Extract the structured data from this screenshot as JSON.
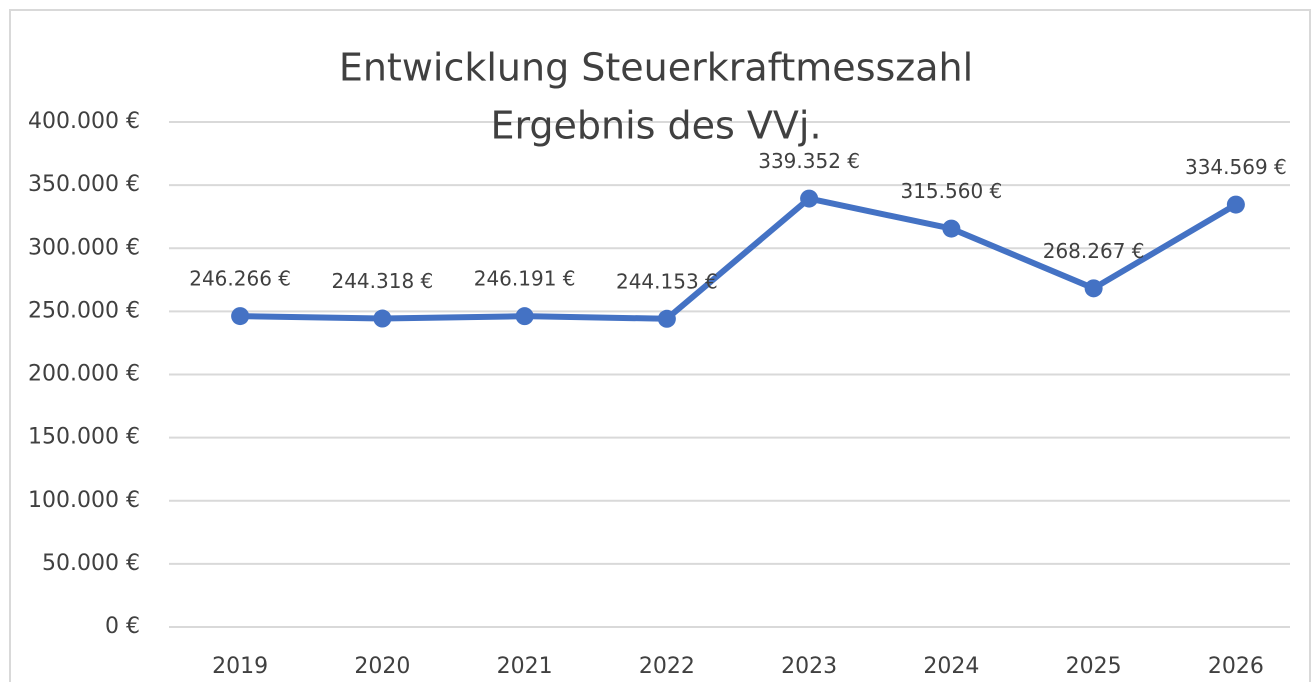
{
  "chart_data": {
    "type": "line",
    "title": "Entwicklung Steuerkraftmesszahl",
    "subtitle": "Ergebnis des VVj.",
    "categories": [
      "2019",
      "2020",
      "2021",
      "2022",
      "2023",
      "2024",
      "2025",
      "2026"
    ],
    "series": [
      {
        "color": "#4472c4",
        "values": [
          246266,
          244318,
          246191,
          244153,
          339352,
          315560,
          268267,
          334569
        ],
        "value_labels": [
          "246.266 €",
          "244.318 €",
          "246.191 €",
          "244.153 €",
          "339.352 €",
          "315.560 €",
          "268.267 €",
          "334.569 €"
        ]
      }
    ],
    "ylim": [
      0,
      400000
    ],
    "yticks": [
      {
        "value": 0,
        "label": "0 €"
      },
      {
        "value": 50000,
        "label": "50.000 €"
      },
      {
        "value": 100000,
        "label": "100.000 €"
      },
      {
        "value": 150000,
        "label": "150.000 €"
      },
      {
        "value": 200000,
        "label": "200.000 €"
      },
      {
        "value": 250000,
        "label": "250.000 €"
      },
      {
        "value": 300000,
        "label": "300.000 €"
      },
      {
        "value": 350000,
        "label": "350.000 €"
      },
      {
        "value": 400000,
        "label": "400.000 €"
      }
    ],
    "grid": true
  }
}
